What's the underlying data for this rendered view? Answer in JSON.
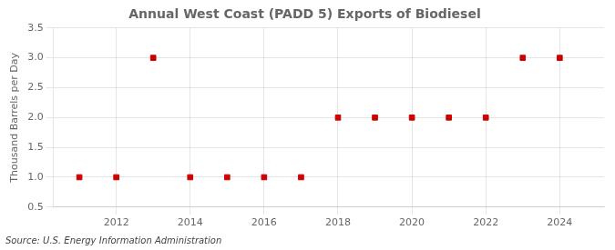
{
  "chart_data": {
    "type": "scatter",
    "title": "Annual West Coast (PADD 5) Exports of Biodiesel",
    "ylabel": "Thousand Barrels per Day",
    "annotations": [
      "Source: U.S. Energy Information Administration"
    ],
    "x": [
      2011,
      2012,
      2013,
      2014,
      2015,
      2016,
      2017,
      2018,
      2019,
      2020,
      2021,
      2022,
      2023,
      2024
    ],
    "values": [
      1.0,
      1.0,
      3.0,
      1.0,
      1.0,
      1.0,
      1.0,
      2.0,
      2.0,
      2.0,
      2.0,
      2.0,
      3.0,
      3.0
    ],
    "color": "#cc0000",
    "marker": "square",
    "xlim": [
      2010.3,
      2025.2
    ],
    "ylim": [
      0.5,
      3.5
    ],
    "xticks": [
      2012,
      2014,
      2016,
      2018,
      2020,
      2022,
      2024
    ],
    "yticks": [
      0.5,
      {
        "value": 1.0,
        "label": "1.0"
      },
      1.5,
      {
        "value": 2.0,
        "label": "2.0"
      },
      2.5,
      {
        "value": 3.0,
        "label": "3.0"
      },
      3.5
    ],
    "grid": true
  }
}
